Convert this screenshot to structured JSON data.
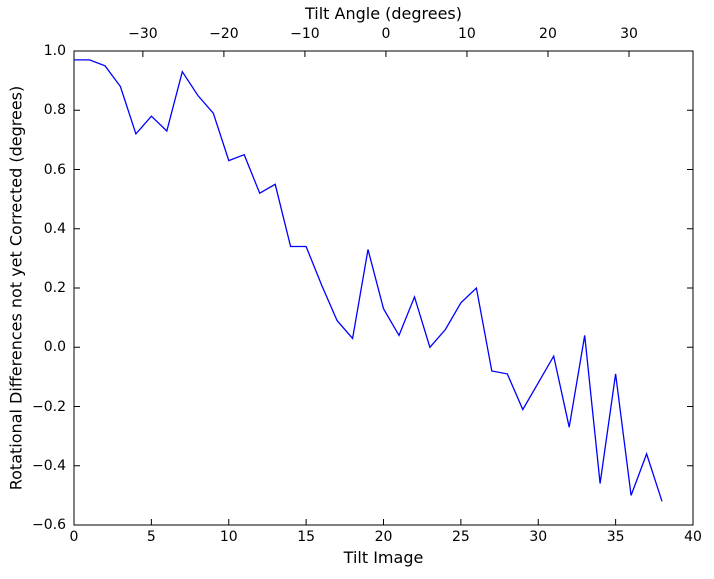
{
  "chart_data": {
    "type": "line",
    "top_axis_label": "Tilt Angle (degrees)",
    "xlabel": "Tilt Image",
    "ylabel": "Rotational Differences not yet Corrected (degrees)",
    "x_range": [
      0,
      40
    ],
    "y_range": [
      -0.6,
      1.0
    ],
    "top_axis_range": [
      -38.5,
      37.9
    ],
    "x_ticks": {
      "values": [
        0,
        5,
        10,
        15,
        20,
        25,
        30,
        35,
        40
      ],
      "labels": [
        "0",
        "5",
        "10",
        "15",
        "20",
        "25",
        "30",
        "35",
        "40"
      ]
    },
    "y_ticks": {
      "values": [
        1.0,
        0.8,
        0.6,
        0.4,
        0.2,
        0.0,
        -0.2,
        -0.4,
        -0.6
      ],
      "labels": [
        "1.0",
        "0.8",
        "0.6",
        "0.4",
        "0.2",
        "0.0",
        "−0.2",
        "−0.4",
        "−0.6"
      ]
    },
    "top_ticks": {
      "values": [
        -30,
        -20,
        -10,
        0,
        10,
        20,
        30
      ],
      "labels": [
        "−30",
        "−20",
        "−10",
        "0",
        "10",
        "20",
        "30"
      ]
    },
    "grid": false,
    "legend": null,
    "line_color": "#0000ff",
    "axis_color": "#000000",
    "x": [
      0,
      1,
      2,
      3,
      4,
      5,
      6,
      7,
      8,
      9,
      10,
      11,
      12,
      13,
      14,
      15,
      16,
      17,
      18,
      19,
      20,
      21,
      22,
      23,
      24,
      25,
      26,
      27,
      28,
      29,
      30,
      31,
      32,
      33,
      34,
      35,
      36,
      37,
      38
    ],
    "y": [
      0.97,
      0.97,
      0.95,
      0.88,
      0.72,
      0.78,
      0.73,
      0.93,
      0.85,
      0.79,
      0.63,
      0.65,
      0.52,
      0.55,
      0.34,
      0.34,
      0.21,
      0.09,
      0.03,
      0.33,
      0.13,
      0.04,
      0.17,
      0.0,
      0.06,
      0.15,
      0.2,
      -0.08,
      -0.09,
      -0.21,
      -0.12,
      -0.03,
      -0.27,
      0.04,
      -0.46,
      -0.09,
      -0.5,
      -0.36,
      -0.52
    ]
  }
}
